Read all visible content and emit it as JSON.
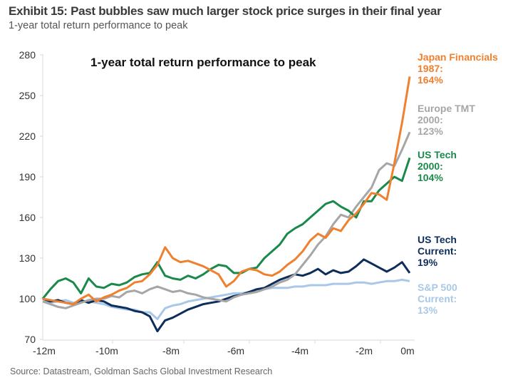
{
  "header": {
    "title": "Exhibit 15: Past bubbles saw much larger stock price surges in their final year",
    "subtitle": "1-year total return performance to peak"
  },
  "footer": {
    "source": "Source: Datastream, Goldman Sachs Global Investment Research"
  },
  "chart_data": {
    "type": "line",
    "title": "1-year total return performance to peak",
    "xlabel": "",
    "ylabel": "",
    "x_ticks": [
      "-12m",
      "-10m",
      "-8m",
      "-6m",
      "-4m",
      "-2m",
      "0m"
    ],
    "y_ticks": [
      70,
      100,
      130,
      160,
      190,
      220,
      250,
      280
    ],
    "ylim": [
      70,
      280
    ],
    "xlim": [
      -12,
      0
    ],
    "grid": false,
    "legend": "right-inline-labels",
    "x": [
      -12,
      -11.75,
      -11.5,
      -11.25,
      -11,
      -10.75,
      -10.5,
      -10.25,
      -10,
      -9.75,
      -9.5,
      -9.25,
      -9,
      -8.75,
      -8.5,
      -8.25,
      -8,
      -7.75,
      -7.5,
      -7.25,
      -7,
      -6.75,
      -6.5,
      -6.25,
      -6,
      -5.75,
      -5.5,
      -5.25,
      -5,
      -4.75,
      -4.5,
      -4.25,
      -4,
      -3.75,
      -3.5,
      -3.25,
      -3,
      -2.75,
      -2.5,
      -2.25,
      -2,
      -1.75,
      -1.5,
      -1.25,
      -1,
      -0.75,
      -0.5,
      -0.25,
      0
    ],
    "series": [
      {
        "name": "Japan Financials 1987",
        "label_lines": [
          "Japan Financials",
          "1987:",
          "164%"
        ],
        "color": "#F0802E",
        "values": [
          100,
          99,
          98,
          97,
          96,
          100,
          103,
          98,
          101,
          103,
          106,
          108,
          112,
          113,
          118,
          125,
          138,
          130,
          127,
          128,
          126,
          124,
          121,
          118,
          109,
          113,
          120,
          122,
          121,
          118,
          117,
          120,
          125,
          129,
          135,
          143,
          148,
          145,
          152,
          150,
          158,
          163,
          170,
          178,
          177,
          173,
          200,
          230,
          264
        ]
      },
      {
        "name": "Europe TMT 2000",
        "label_lines": [
          "Europe TMT",
          "2000:",
          "123%"
        ],
        "color": "#A6A6A6",
        "values": [
          98,
          96,
          94,
          93,
          95,
          97,
          99,
          100,
          100,
          102,
          101,
          105,
          106,
          104,
          107,
          109,
          107,
          105,
          106,
          104,
          103,
          101,
          100,
          99,
          98,
          101,
          103,
          104,
          105,
          107,
          109,
          112,
          114,
          118,
          125,
          132,
          140,
          146,
          155,
          162,
          160,
          168,
          175,
          182,
          195,
          200,
          198,
          210,
          223
        ]
      },
      {
        "name": "US Tech 2000",
        "label_lines": [
          "US Tech",
          "2000:",
          "104%"
        ],
        "color": "#1A8A4A",
        "values": [
          100,
          107,
          113,
          115,
          112,
          104,
          115,
          109,
          108,
          111,
          110,
          112,
          116,
          118,
          119,
          127,
          117,
          115,
          114,
          117,
          115,
          118,
          122,
          125,
          124,
          119,
          119,
          122,
          123,
          130,
          135,
          140,
          148,
          152,
          155,
          160,
          165,
          170,
          172,
          168,
          165,
          160,
          172,
          172,
          180,
          185,
          190,
          187,
          204
        ]
      },
      {
        "name": "US Tech Current",
        "label_lines": [
          "US Tech",
          "Current:",
          "19%"
        ],
        "color": "#0D2D5A",
        "values": [
          100,
          98,
          99,
          97,
          96,
          99,
          97,
          99,
          98,
          95,
          94,
          93,
          91,
          90,
          87,
          76,
          84,
          86,
          89,
          92,
          94,
          96,
          97,
          98,
          100,
          102,
          103,
          105,
          107,
          108,
          111,
          114,
          116,
          118,
          117,
          119,
          122,
          118,
          121,
          119,
          120,
          124,
          129,
          126,
          123,
          120,
          123,
          127,
          119
        ]
      },
      {
        "name": "S&P 500 Current",
        "label_lines": [
          "S&P 500",
          "Current:",
          "13%"
        ],
        "color": "#A9C8E8",
        "values": [
          98,
          97,
          98,
          99,
          97,
          98,
          98,
          97,
          96,
          94,
          93,
          92,
          92,
          90,
          90,
          85,
          93,
          95,
          96,
          98,
          99,
          100,
          101,
          102,
          103,
          104,
          104,
          105,
          106,
          107,
          108,
          108,
          108,
          109,
          109,
          110,
          110,
          110,
          111,
          111,
          111,
          112,
          112,
          111,
          112,
          113,
          113,
          114,
          113
        ]
      }
    ]
  }
}
